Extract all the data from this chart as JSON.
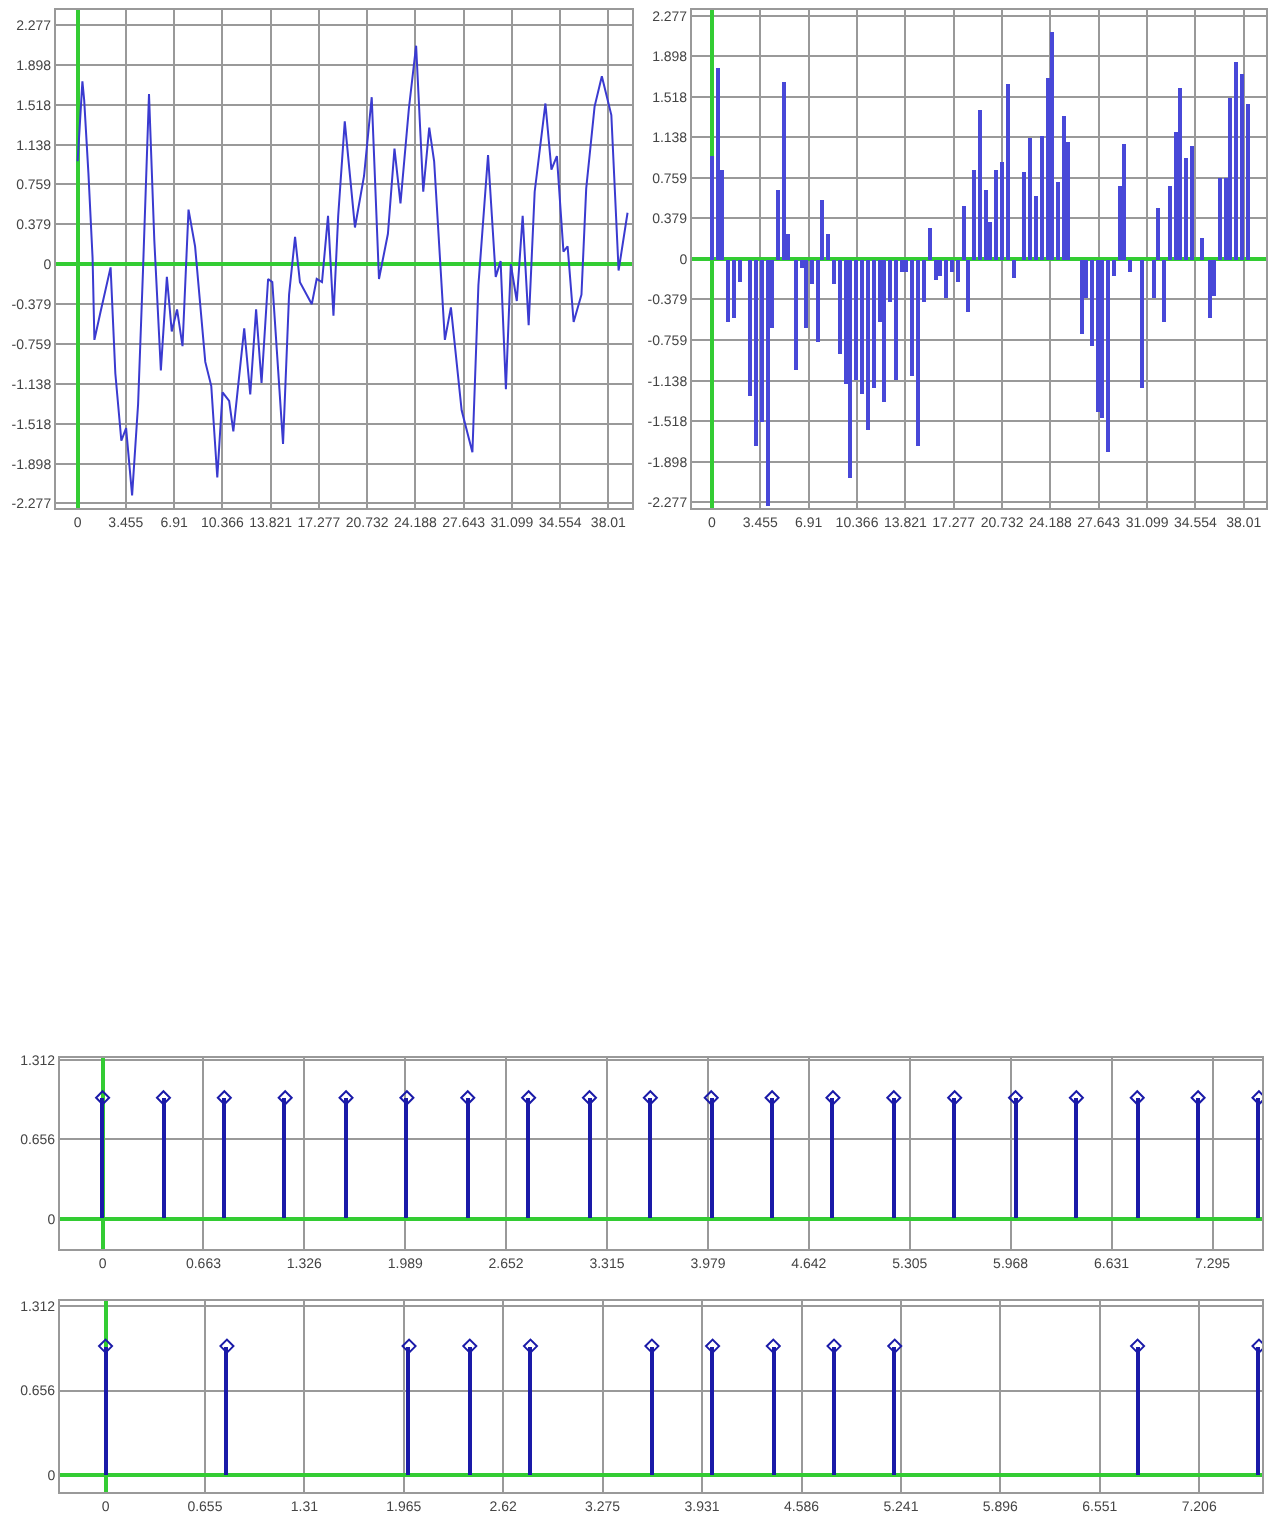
{
  "chart_data": [
    {
      "type": "line",
      "color": "#3a3ad0",
      "line_style": "solid",
      "marker": "none",
      "grid": true,
      "x": [
        0,
        0.34,
        0.47,
        0.77,
        1.07,
        1.2,
        1.63,
        2.36,
        2.7,
        3.13,
        3.47,
        3.9,
        4.33,
        4.68,
        5.11,
        5.49,
        5.96,
        6.39,
        6.74,
        7.12,
        7.51,
        7.94,
        8.41,
        9.14,
        9.57,
        10.0,
        10.38,
        10.85,
        11.15,
        11.93,
        12.36,
        12.78,
        13.17,
        13.64,
        13.94,
        14.71,
        15.14,
        15.57,
        15.92,
        16.77,
        17.12,
        17.5,
        17.93,
        18.32,
        18.66,
        19.13,
        19.86,
        20.51,
        21.06,
        21.58,
        22.22,
        22.69,
        23.12,
        23.72,
        24.24,
        24.75,
        25.18,
        25.53,
        26.3,
        26.73,
        27.5,
        28.27,
        28.7,
        29.39,
        29.94,
        30.29,
        30.67,
        31.02,
        31.45,
        31.87,
        32.3,
        32.73,
        33.5,
        33.93,
        34.32,
        34.79,
        35.09,
        35.52,
        36.08,
        36.42,
        37.02,
        37.54,
        38.22,
        38.74,
        39.38
      ],
      "values": [
        0.98,
        1.74,
        1.56,
        0.87,
        0.06,
        -0.72,
        -0.46,
        -0.03,
        -1.04,
        -1.68,
        -1.56,
        -2.2,
        -1.33,
        -0.06,
        1.62,
        0.23,
        -1.01,
        -0.12,
        -0.64,
        -0.43,
        -0.78,
        0.52,
        0.17,
        -0.93,
        -1.16,
        -2.03,
        -1.22,
        -1.3,
        -1.59,
        -0.61,
        -1.24,
        -0.43,
        -1.13,
        -0.14,
        -0.17,
        -1.71,
        -0.29,
        0.26,
        -0.17,
        -0.38,
        -0.14,
        -0.17,
        0.46,
        -0.49,
        0.46,
        1.36,
        0.35,
        0.84,
        1.59,
        -0.14,
        0.29,
        1.1,
        0.58,
        1.48,
        2.08,
        0.69,
        1.3,
        0.98,
        -0.72,
        -0.41,
        -1.39,
        -1.79,
        -0.2,
        1.04,
        -0.12,
        0.03,
        -1.19,
        0,
        -0.35,
        0.46,
        -0.58,
        0.69,
        1.53,
        0.9,
        1.03,
        0.12,
        0.17,
        -0.55,
        -0.29,
        0.72,
        1.5,
        1.79,
        1.42,
        -0.06,
        0.49
      ],
      "xlim": [
        -1.55,
        39.7
      ],
      "ylim": [
        -2.32,
        2.42
      ],
      "xticks": [
        0,
        3.455,
        6.91,
        10.366,
        13.821,
        17.277,
        20.732,
        24.188,
        27.643,
        31.099,
        34.554,
        38.01
      ],
      "yticks": [
        -2.277,
        -1.898,
        -1.518,
        -1.138,
        -0.759,
        -0.379,
        0,
        0.379,
        0.759,
        1.138,
        1.518,
        1.898,
        2.277
      ]
    },
    {
      "type": "bar",
      "color": "#4848d8",
      "grid": true,
      "x": [
        0,
        0.39,
        0.78,
        1.17,
        1.56,
        1.95,
        2.78,
        3.12,
        3.52,
        3.95,
        4.34,
        4.69,
        5.12,
        5.51,
        5.99,
        6.38,
        6.77,
        7.16,
        7.55,
        7.94,
        8.33,
        8.72,
        9.11,
        9.55,
        9.94,
        10.33,
        10.72,
        11.15,
        11.59,
        11.98,
        12.33,
        12.76,
        13.15,
        13.54,
        13.93,
        14.32,
        14.71,
        15.15,
        15.58,
        16.01,
        16.36,
        16.75,
        17.19,
        17.58,
        17.97,
        18.36,
        18.75,
        19.18,
        19.57,
        19.92,
        20.35,
        20.7,
        21.14,
        21.61,
        22.35,
        22.79,
        23.18,
        23.57,
        23.96,
        24.35,
        24.74,
        25.17,
        25.52,
        26.39,
        26.78,
        27.17,
        27.56,
        27.95,
        28.34,
        28.77,
        29.12,
        29.51,
        29.95,
        30.73,
        31.55,
        31.94,
        32.38,
        32.77,
        33.11,
        33.5,
        33.94,
        34.33,
        35.11,
        35.54,
        35.94,
        36.33,
        36.72,
        37.11,
        37.5,
        37.93,
        38.32
      ],
      "values": [
        0.96,
        1.78,
        0.83,
        -0.59,
        -0.56,
        -0.21,
        -1.29,
        -1.75,
        -1.52,
        -2.31,
        -0.65,
        0.65,
        1.66,
        0.23,
        -1.03,
        -0.09,
        -0.65,
        -0.24,
        -0.78,
        0.55,
        0.23,
        -0.24,
        -0.89,
        -1.16,
        -2.05,
        -1.14,
        -1.27,
        -1.6,
        -1.2,
        -0.59,
        -1.33,
        -0.41,
        -1.13,
        -0.12,
        -0.12,
        -1.09,
        -1.75,
        -0.41,
        0.29,
        -0.19,
        -0.15,
        -0.37,
        -0.12,
        -0.21,
        0.5,
        -0.5,
        0.84,
        1.39,
        0.65,
        0.34,
        0.83,
        0.9,
        1.64,
        -0.17,
        0.81,
        1.13,
        0.59,
        1.16,
        1.69,
        2.13,
        0.72,
        1.34,
        1.1,
        -0.71,
        -0.37,
        -0.82,
        -1.43,
        -1.48,
        -1.81,
        -0.15,
        0.68,
        1.07,
        -0.12,
        -1.2,
        -0.36,
        0.48,
        -0.59,
        0.68,
        1.19,
        1.6,
        0.94,
        1.06,
        0.2,
        -0.56,
        -0.34,
        0.76,
        0.76,
        1.51,
        1.85,
        1.73,
        1.45
      ],
      "xlim": [
        -1.43,
        39.6
      ],
      "ylim": [
        -2.33,
        2.33
      ],
      "xticks": [
        0,
        3.455,
        6.91,
        10.366,
        13.821,
        17.277,
        20.732,
        24.188,
        27.643,
        31.099,
        34.554,
        38.01
      ],
      "yticks": [
        -2.277,
        -1.898,
        -1.518,
        -1.138,
        -0.759,
        -0.379,
        0,
        0.379,
        0.759,
        1.138,
        1.518,
        1.898,
        2.277
      ]
    },
    {
      "type": "lollipop",
      "color": "#1a1aa8",
      "marker": "diamond",
      "grid": true,
      "x": [
        0,
        0.4,
        0.8,
        1.2,
        1.6,
        2.0,
        2.4,
        2.8,
        3.2,
        3.6,
        4.0,
        4.4,
        4.8,
        5.2,
        5.6,
        6.0,
        6.4,
        6.8,
        7.2,
        7.6
      ],
      "values": [
        1,
        1,
        1,
        1,
        1,
        1,
        1,
        1,
        1,
        1,
        1,
        1,
        1,
        1,
        1,
        1,
        1,
        1,
        1,
        1
      ],
      "xlim": [
        -0.28,
        7.62
      ],
      "ylim": [
        -0.25,
        1.33
      ],
      "xticks": [
        0,
        0.663,
        1.326,
        1.989,
        2.652,
        3.315,
        {
          "value": 3.979,
          "label": "3.979"
        },
        4.642,
        5.305,
        5.968,
        6.631,
        7.295
      ],
      "yticks": [
        0,
        0.656,
        1.312
      ]
    },
    {
      "type": "lollipop",
      "color": "#1a1aa8",
      "marker": "diamond",
      "grid": true,
      "x": [
        0,
        0.8,
        2.0,
        2.4,
        2.8,
        3.6,
        4.0,
        4.4,
        4.8,
        5.2,
        6.8,
        7.6
      ],
      "values": [
        1,
        1,
        1,
        1,
        1,
        1,
        1,
        1,
        1,
        1,
        1,
        1
      ],
      "xlim": [
        -0.3,
        7.62
      ],
      "ylim": [
        -0.13,
        1.35
      ],
      "xticks": [
        0,
        0.655,
        1.31,
        1.965,
        2.62,
        3.275,
        3.931,
        4.586,
        5.241,
        5.896,
        6.551,
        7.206
      ],
      "yticks": [
        0,
        0.656,
        1.312
      ]
    }
  ]
}
